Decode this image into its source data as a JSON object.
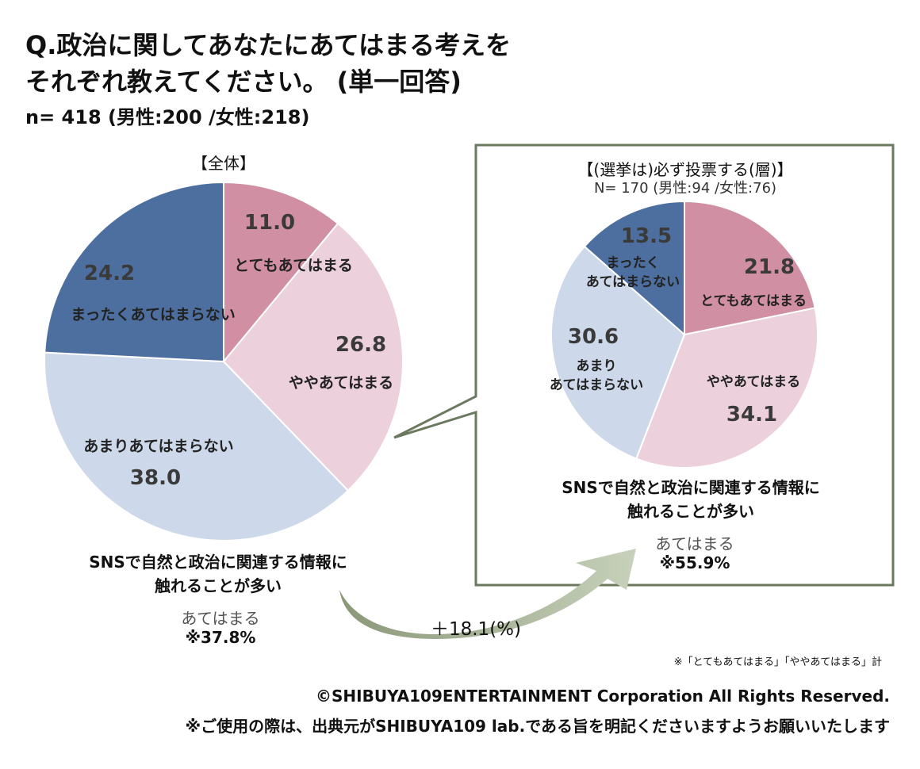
{
  "title_line1": "Q.政治に関してあなたにあてはまる考えを",
  "title_line2": "それぞれ教えてください。 (単一回答)",
  "sample_size": "n= 418 (男性:200 /女性:218)",
  "colors": {
    "very_applies": "#d08fa3",
    "somewhat_applies": "#ecd1dc",
    "not_much": "#cdd9ea",
    "not_at_all": "#4d6f9f",
    "frame": "#6b7a5e",
    "arrow_dark": "#8a9878",
    "arrow_light": "#c7d1bb"
  },
  "chart_data": [
    {
      "type": "pie",
      "title": "【全体】",
      "categories": [
        "とてもあてはまる",
        "ややあてはまる",
        "あまりあてはまらない",
        "まったくあてはまらない"
      ],
      "values": [
        11.0,
        26.8,
        38.0,
        24.2
      ]
    },
    {
      "type": "pie",
      "title": "【(選挙は)必ず投票する(層)】",
      "subtitle": "N= 170 (男性:94 /女性:76)",
      "categories": [
        "とてもあてはまる",
        "ややあてはまる",
        "あまりあてはまらない",
        "まったくあてはまらない"
      ],
      "labels": [
        "とてもあてはまる",
        "ややあてはまる",
        "あまり\nあてはまらない",
        "まったく\nあてはまらない"
      ],
      "values": [
        21.8,
        34.1,
        30.6,
        13.5
      ]
    }
  ],
  "left_caption": {
    "line1": "SNSで自然と政治に関連する情報に",
    "line2": "触れることが多い",
    "applies_label": "あてはまる",
    "applies_value": "※37.8%"
  },
  "right_caption": {
    "line1": "SNSで自然と政治に関連する情報に",
    "line2": "触れることが多い",
    "applies_label": "あてはまる",
    "applies_value": "※55.9%"
  },
  "difference": "＋18.1(%)",
  "note": "※「とてもあてはまる」「ややあてはまる」計",
  "copyright": "©SHIBUYA109ENTERTAINMENT Corporation All Rights Reserved.",
  "usage_note": "※ご使用の際は、出典元がSHIBUYA109 lab.である旨を明記くださいますようお願いいたします"
}
